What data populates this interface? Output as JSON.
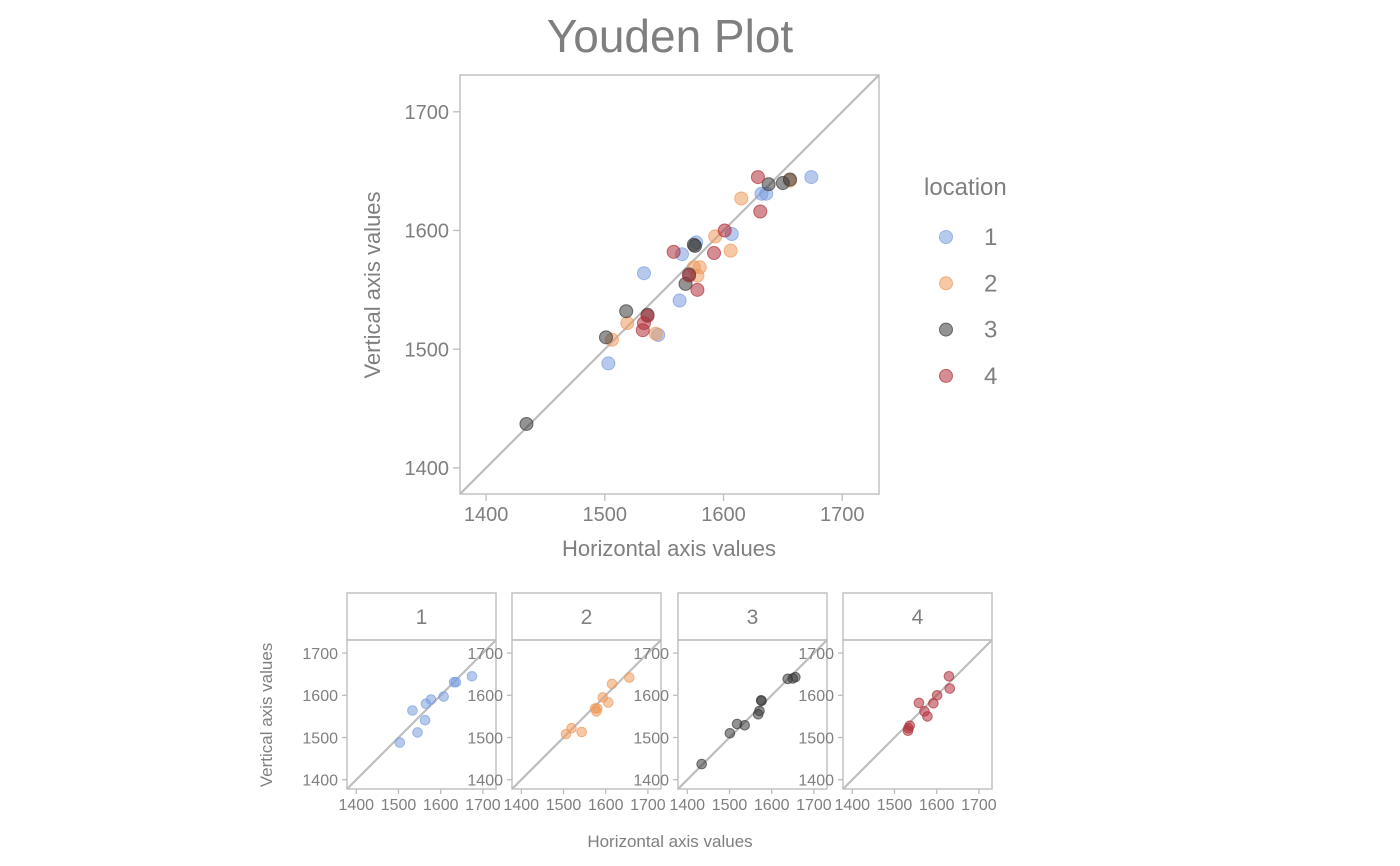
{
  "title": "Youden Plot",
  "legend": {
    "title": "location",
    "items": [
      {
        "label": "1",
        "color": "#7b9fe0"
      },
      {
        "label": "2",
        "color": "#ee9a5c"
      },
      {
        "label": "3",
        "color": "#3a3a3a"
      },
      {
        "label": "4",
        "color": "#b0303a"
      }
    ]
  },
  "main_plot": {
    "xlabel": "Horizontal axis values",
    "ylabel": "Vertical axis values"
  },
  "facets": {
    "xlabel": "Horizontal axis values",
    "ylabel": "Vertical axis values",
    "strips": [
      "1",
      "2",
      "3",
      "4"
    ]
  },
  "chart_data": {
    "type": "scatter",
    "title": "Youden Plot",
    "xlabel": "Horizontal axis values",
    "ylabel": "Vertical axis values",
    "xlim": [
      1378,
      1731
    ],
    "ylim": [
      1378,
      1731
    ],
    "xticks": [
      "1400",
      "1500",
      "1600",
      "1700"
    ],
    "yticks": [
      "1400",
      "1500",
      "1600",
      "1700"
    ],
    "reference_line": "y = x",
    "grid": false,
    "legend_position": "right",
    "series": [
      {
        "name": "1",
        "x": [
          1674,
          1607,
          1577,
          1565,
          1563,
          1545,
          1533,
          1503,
          1632,
          1636
        ],
        "y": [
          1645,
          1597,
          1590,
          1580,
          1541,
          1512,
          1564,
          1488,
          1631,
          1631
        ]
      },
      {
        "name": "2",
        "x": [
          1656,
          1615,
          1606,
          1593,
          1580,
          1578,
          1575,
          1543,
          1519,
          1506
        ],
        "y": [
          1642,
          1627,
          1583,
          1595,
          1569,
          1562,
          1569,
          1513,
          1522,
          1508
        ]
      },
      {
        "name": "3",
        "x": [
          1656,
          1650,
          1638,
          1576,
          1575,
          1571,
          1568,
          1536,
          1518,
          1501,
          1434
        ],
        "y": [
          1643,
          1640,
          1639,
          1587,
          1588,
          1563,
          1555,
          1529,
          1532,
          1510,
          1437
        ]
      },
      {
        "name": "4",
        "x": [
          1629,
          1631,
          1601,
          1592,
          1578,
          1571,
          1558,
          1536,
          1533,
          1532
        ],
        "y": [
          1645,
          1616,
          1600,
          1581,
          1550,
          1562,
          1582,
          1528,
          1522,
          1516
        ]
      }
    ]
  }
}
